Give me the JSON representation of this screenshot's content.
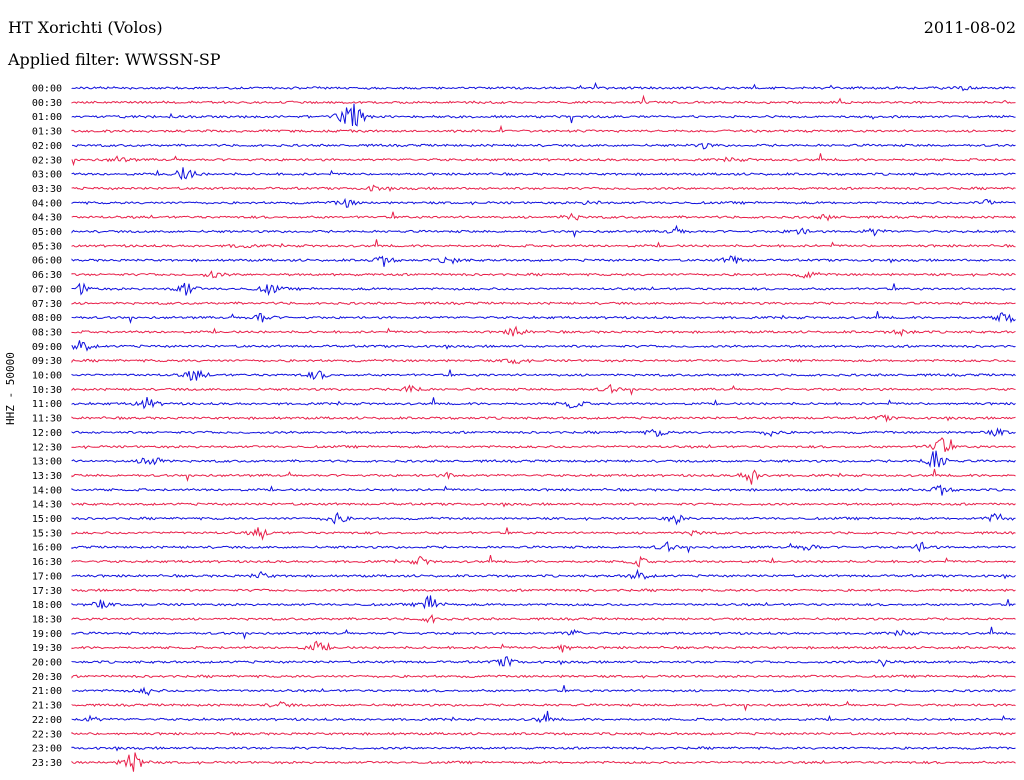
{
  "header": {
    "station": "HT Xorichti (Volos)",
    "date": "2011-08-02",
    "filter": "Applied filter: WWSSN-SP"
  },
  "colors": {
    "trace_a": "#1010dd",
    "trace_b": "#e8204a",
    "text": "#000000"
  },
  "chart_data": {
    "type": "line",
    "title": "HT Xorichti (Volos)",
    "subtitle": "Applied filter: WWSSN-SP",
    "ylabel": "HHZ - 50000",
    "xlabel": "",
    "rows": [
      {
        "label": "00:00",
        "color": "trace_a",
        "events": [
          {
            "t": 0.94,
            "amp": 3
          }
        ]
      },
      {
        "label": "00:30",
        "color": "trace_b",
        "events": []
      },
      {
        "label": "01:00",
        "color": "trace_a",
        "events": [
          {
            "t": 0.29,
            "amp": 14
          },
          {
            "t": 0.3,
            "amp": 12
          }
        ]
      },
      {
        "label": "01:30",
        "color": "trace_b",
        "events": []
      },
      {
        "label": "02:00",
        "color": "trace_a",
        "events": [
          {
            "t": 0.67,
            "amp": 3
          }
        ]
      },
      {
        "label": "02:30",
        "color": "trace_b",
        "events": [
          {
            "t": 0.05,
            "amp": 4
          },
          {
            "t": 0.7,
            "amp": 2
          }
        ]
      },
      {
        "label": "03:00",
        "color": "trace_a",
        "events": [
          {
            "t": 0.12,
            "amp": 10
          }
        ]
      },
      {
        "label": "03:30",
        "color": "trace_b",
        "events": [
          {
            "t": 0.32,
            "amp": 3
          }
        ]
      },
      {
        "label": "04:00",
        "color": "trace_a",
        "events": [
          {
            "t": 0.29,
            "amp": 5
          },
          {
            "t": 0.55,
            "amp": 3
          },
          {
            "t": 0.97,
            "amp": 4
          }
        ]
      },
      {
        "label": "04:30",
        "color": "trace_b",
        "events": [
          {
            "t": 0.53,
            "amp": 4
          },
          {
            "t": 0.8,
            "amp": 3
          }
        ]
      },
      {
        "label": "05:00",
        "color": "trace_a",
        "events": [
          {
            "t": 0.64,
            "amp": 4
          },
          {
            "t": 0.77,
            "amp": 5
          },
          {
            "t": 0.85,
            "amp": 4
          }
        ]
      },
      {
        "label": "05:30",
        "color": "trace_b",
        "events": [
          {
            "t": 0.18,
            "amp": 3
          }
        ]
      },
      {
        "label": "06:00",
        "color": "trace_a",
        "events": [
          {
            "t": 0.33,
            "amp": 6
          },
          {
            "t": 0.4,
            "amp": 5
          },
          {
            "t": 0.7,
            "amp": 6
          }
        ]
      },
      {
        "label": "06:30",
        "color": "trace_b",
        "events": [
          {
            "t": 0.15,
            "amp": 4
          },
          {
            "t": 0.78,
            "amp": 5
          }
        ]
      },
      {
        "label": "07:00",
        "color": "trace_a",
        "events": [
          {
            "t": 0.01,
            "amp": 6
          },
          {
            "t": 0.12,
            "amp": 9
          },
          {
            "t": 0.21,
            "amp": 7
          }
        ]
      },
      {
        "label": "07:30",
        "color": "trace_b",
        "events": []
      },
      {
        "label": "08:00",
        "color": "trace_a",
        "events": [
          {
            "t": 0.2,
            "amp": 6
          },
          {
            "t": 0.99,
            "amp": 10
          }
        ]
      },
      {
        "label": "08:30",
        "color": "trace_b",
        "events": [
          {
            "t": 0.47,
            "amp": 6
          },
          {
            "t": 0.88,
            "amp": 4
          }
        ]
      },
      {
        "label": "09:00",
        "color": "trace_a",
        "events": [
          {
            "t": 0.01,
            "amp": 8
          }
        ]
      },
      {
        "label": "09:30",
        "color": "trace_b",
        "events": [
          {
            "t": 0.47,
            "amp": 4
          }
        ]
      },
      {
        "label": "10:00",
        "color": "trace_a",
        "events": [
          {
            "t": 0.13,
            "amp": 9
          },
          {
            "t": 0.26,
            "amp": 6
          }
        ]
      },
      {
        "label": "10:30",
        "color": "trace_b",
        "events": [
          {
            "t": 0.36,
            "amp": 6
          },
          {
            "t": 0.57,
            "amp": 4
          }
        ]
      },
      {
        "label": "11:00",
        "color": "trace_a",
        "events": [
          {
            "t": 0.08,
            "amp": 7
          },
          {
            "t": 0.53,
            "amp": 6
          }
        ]
      },
      {
        "label": "11:30",
        "color": "trace_b",
        "events": [
          {
            "t": 0.86,
            "amp": 3
          }
        ]
      },
      {
        "label": "12:00",
        "color": "trace_a",
        "events": [
          {
            "t": 0.62,
            "amp": 5
          },
          {
            "t": 0.74,
            "amp": 4
          },
          {
            "t": 0.98,
            "amp": 4
          }
        ]
      },
      {
        "label": "12:30",
        "color": "trace_b",
        "events": [
          {
            "t": 0.92,
            "amp": 12
          }
        ]
      },
      {
        "label": "13:00",
        "color": "trace_a",
        "events": [
          {
            "t": 0.085,
            "amp": 11
          },
          {
            "t": 0.915,
            "amp": 16
          }
        ]
      },
      {
        "label": "13:30",
        "color": "trace_b",
        "events": [
          {
            "t": 0.4,
            "amp": 3
          },
          {
            "t": 0.72,
            "amp": 10
          }
        ]
      },
      {
        "label": "14:00",
        "color": "trace_a",
        "events": [
          {
            "t": 0.92,
            "amp": 6
          }
        ]
      },
      {
        "label": "14:30",
        "color": "trace_b",
        "events": []
      },
      {
        "label": "15:00",
        "color": "trace_a",
        "events": [
          {
            "t": 0.28,
            "amp": 8
          },
          {
            "t": 0.64,
            "amp": 5
          },
          {
            "t": 0.98,
            "amp": 7
          }
        ]
      },
      {
        "label": "15:30",
        "color": "trace_b",
        "events": [
          {
            "t": 0.2,
            "amp": 8
          },
          {
            "t": 0.66,
            "amp": 3
          }
        ]
      },
      {
        "label": "16:00",
        "color": "trace_a",
        "events": [
          {
            "t": 0.63,
            "amp": 5
          },
          {
            "t": 0.78,
            "amp": 5
          },
          {
            "t": 0.9,
            "amp": 5
          }
        ]
      },
      {
        "label": "16:30",
        "color": "trace_b",
        "events": [
          {
            "t": 0.37,
            "amp": 5
          },
          {
            "t": 0.6,
            "amp": 5
          }
        ]
      },
      {
        "label": "17:00",
        "color": "trace_a",
        "events": [
          {
            "t": 0.2,
            "amp": 4
          },
          {
            "t": 0.6,
            "amp": 6
          }
        ]
      },
      {
        "label": "17:30",
        "color": "trace_b",
        "events": []
      },
      {
        "label": "18:00",
        "color": "trace_a",
        "events": [
          {
            "t": 0.03,
            "amp": 5
          },
          {
            "t": 0.38,
            "amp": 12
          }
        ]
      },
      {
        "label": "18:30",
        "color": "trace_b",
        "events": [
          {
            "t": 0.38,
            "amp": 4
          }
        ]
      },
      {
        "label": "19:00",
        "color": "trace_a",
        "events": [
          {
            "t": 0.53,
            "amp": 4
          },
          {
            "t": 0.88,
            "amp": 3
          }
        ]
      },
      {
        "label": "19:30",
        "color": "trace_b",
        "events": [
          {
            "t": 0.26,
            "amp": 7
          },
          {
            "t": 0.52,
            "amp": 5
          }
        ]
      },
      {
        "label": "20:00",
        "color": "trace_a",
        "events": [
          {
            "t": 0.46,
            "amp": 6
          },
          {
            "t": 0.86,
            "amp": 4
          }
        ]
      },
      {
        "label": "20:30",
        "color": "trace_b",
        "events": []
      },
      {
        "label": "21:00",
        "color": "trace_a",
        "events": [
          {
            "t": 0.08,
            "amp": 4
          }
        ]
      },
      {
        "label": "21:30",
        "color": "trace_b",
        "events": [
          {
            "t": 0.22,
            "amp": 4
          }
        ]
      },
      {
        "label": "22:00",
        "color": "trace_a",
        "events": [
          {
            "t": 0.02,
            "amp": 3
          },
          {
            "t": 0.5,
            "amp": 4
          }
        ]
      },
      {
        "label": "22:30",
        "color": "trace_b",
        "events": []
      },
      {
        "label": "23:00",
        "color": "trace_a",
        "events": []
      },
      {
        "label": "23:30",
        "color": "trace_b",
        "events": [
          {
            "t": 0.065,
            "amp": 16
          }
        ]
      }
    ]
  }
}
